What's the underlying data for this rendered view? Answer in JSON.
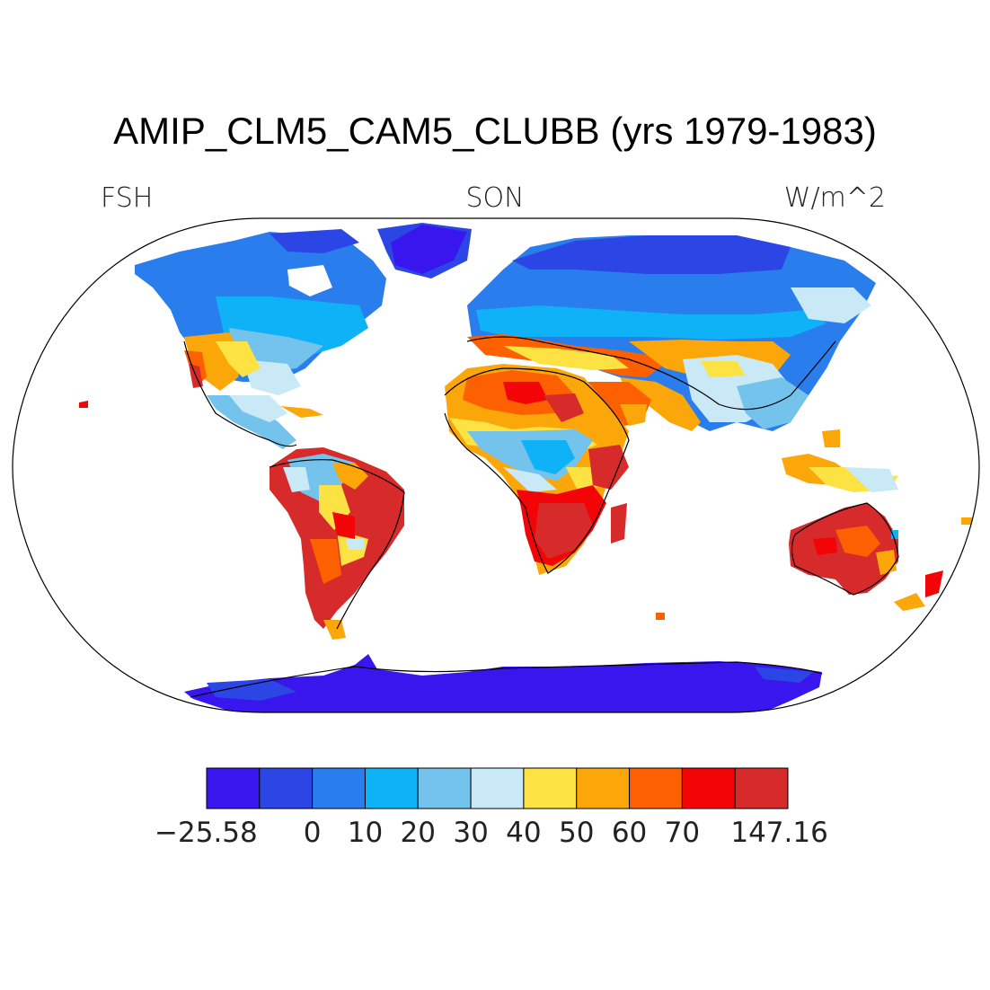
{
  "title": "AMIP_CLM5_CAM5_CLUBB (yrs 1979-1983)",
  "left_label": "FSH",
  "center_label": "SON",
  "right_label": "W/m^2",
  "colorbar": {
    "colors": [
      "#3a16ee",
      "#2c46e6",
      "#2a7ded",
      "#0fb1f7",
      "#73c3ec",
      "#c9e9f6",
      "#fde243",
      "#fca709",
      "#fd6001",
      "#f30407",
      "#d72a2b"
    ],
    "tick_labels": [
      "−25.58",
      "0",
      "10",
      "20",
      "30",
      "40",
      "50",
      "60",
      "70",
      "147.16"
    ]
  },
  "map": {
    "projection": "robinson",
    "variable": "FSH",
    "season": "SON",
    "units": "W/m^2"
  }
}
